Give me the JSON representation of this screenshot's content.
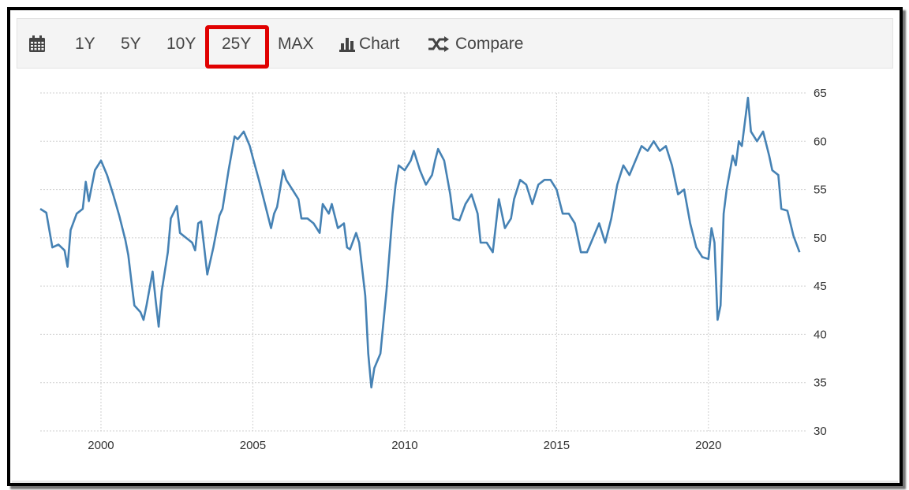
{
  "toolbar": {
    "calendar_icon": "calendar-icon",
    "ranges": [
      "1Y",
      "5Y",
      "10Y",
      "25Y",
      "MAX"
    ],
    "selected_range": "25Y",
    "chart_label": "Chart",
    "chart_icon": "bar-chart-icon",
    "compare_label": "Compare",
    "compare_icon": "shuffle-icon",
    "highlight_color": "#e00000"
  },
  "chart_data": {
    "type": "line",
    "title": "",
    "xlabel": "",
    "ylabel": "",
    "series_color": "#4682b4",
    "x_ticks": [
      "2000",
      "2005",
      "2010",
      "2015",
      "2020"
    ],
    "y_ticks": [
      "65",
      "60",
      "55",
      "50",
      "45",
      "40",
      "35",
      "30"
    ],
    "ylim": [
      30,
      65
    ],
    "xlim": [
      1998.0,
      2023.2
    ],
    "grid": true,
    "y_axis_side": "right",
    "series": [
      {
        "values": [
          [
            1998.0,
            53.0
          ],
          [
            1998.2,
            52.6
          ],
          [
            1998.4,
            49.0
          ],
          [
            1998.6,
            49.3
          ],
          [
            1998.8,
            48.7
          ],
          [
            1998.9,
            47.0
          ],
          [
            1999.0,
            50.8
          ],
          [
            1999.2,
            52.5
          ],
          [
            1999.4,
            53.0
          ],
          [
            1999.5,
            55.8
          ],
          [
            1999.6,
            53.8
          ],
          [
            1999.8,
            57.0
          ],
          [
            2000.0,
            58.0
          ],
          [
            2000.2,
            56.5
          ],
          [
            2000.4,
            54.5
          ],
          [
            2000.6,
            52.3
          ],
          [
            2000.8,
            49.8
          ],
          [
            2000.9,
            48.2
          ],
          [
            2001.0,
            45.5
          ],
          [
            2001.1,
            43.0
          ],
          [
            2001.3,
            42.3
          ],
          [
            2001.4,
            41.5
          ],
          [
            2001.5,
            43.0
          ],
          [
            2001.7,
            46.5
          ],
          [
            2001.8,
            43.5
          ],
          [
            2001.9,
            40.8
          ],
          [
            2002.0,
            44.5
          ],
          [
            2002.2,
            48.5
          ],
          [
            2002.3,
            52.0
          ],
          [
            2002.5,
            53.3
          ],
          [
            2002.6,
            50.5
          ],
          [
            2002.8,
            50.0
          ],
          [
            2003.0,
            49.5
          ],
          [
            2003.1,
            48.7
          ],
          [
            2003.2,
            51.5
          ],
          [
            2003.3,
            51.7
          ],
          [
            2003.5,
            46.2
          ],
          [
            2003.7,
            49.0
          ],
          [
            2003.9,
            52.3
          ],
          [
            2004.0,
            53.0
          ],
          [
            2004.2,
            57.0
          ],
          [
            2004.4,
            60.5
          ],
          [
            2004.5,
            60.2
          ],
          [
            2004.7,
            61.0
          ],
          [
            2004.9,
            59.5
          ],
          [
            2005.0,
            58.3
          ],
          [
            2005.2,
            56.0
          ],
          [
            2005.4,
            53.5
          ],
          [
            2005.6,
            51.0
          ],
          [
            2005.7,
            52.5
          ],
          [
            2005.8,
            53.2
          ],
          [
            2006.0,
            57.0
          ],
          [
            2006.1,
            56.0
          ],
          [
            2006.3,
            55.0
          ],
          [
            2006.5,
            54.0
          ],
          [
            2006.6,
            52.0
          ],
          [
            2006.8,
            52.0
          ],
          [
            2007.0,
            51.5
          ],
          [
            2007.2,
            50.5
          ],
          [
            2007.3,
            53.5
          ],
          [
            2007.5,
            52.5
          ],
          [
            2007.6,
            53.5
          ],
          [
            2007.8,
            51.0
          ],
          [
            2008.0,
            51.5
          ],
          [
            2008.1,
            49.0
          ],
          [
            2008.2,
            48.8
          ],
          [
            2008.4,
            50.5
          ],
          [
            2008.5,
            49.5
          ],
          [
            2008.7,
            44.0
          ],
          [
            2008.8,
            38.0
          ],
          [
            2008.9,
            34.5
          ],
          [
            2009.0,
            36.5
          ],
          [
            2009.2,
            38.0
          ],
          [
            2009.4,
            44.5
          ],
          [
            2009.6,
            52.5
          ],
          [
            2009.7,
            55.5
          ],
          [
            2009.8,
            57.5
          ],
          [
            2010.0,
            57.0
          ],
          [
            2010.2,
            58.0
          ],
          [
            2010.3,
            59.0
          ],
          [
            2010.5,
            57.0
          ],
          [
            2010.7,
            55.5
          ],
          [
            2010.9,
            56.5
          ],
          [
            2011.0,
            58.0
          ],
          [
            2011.1,
            59.2
          ],
          [
            2011.3,
            58.0
          ],
          [
            2011.5,
            54.5
          ],
          [
            2011.6,
            52.0
          ],
          [
            2011.8,
            51.8
          ],
          [
            2012.0,
            53.5
          ],
          [
            2012.2,
            54.5
          ],
          [
            2012.4,
            52.5
          ],
          [
            2012.5,
            49.5
          ],
          [
            2012.7,
            49.5
          ],
          [
            2012.9,
            48.5
          ],
          [
            2013.1,
            54.0
          ],
          [
            2013.3,
            51.0
          ],
          [
            2013.5,
            52.0
          ],
          [
            2013.6,
            54.0
          ],
          [
            2013.8,
            56.0
          ],
          [
            2014.0,
            55.5
          ],
          [
            2014.2,
            53.5
          ],
          [
            2014.4,
            55.5
          ],
          [
            2014.6,
            56.0
          ],
          [
            2014.8,
            56.0
          ],
          [
            2015.0,
            55.0
          ],
          [
            2015.2,
            52.5
          ],
          [
            2015.4,
            52.5
          ],
          [
            2015.6,
            51.5
          ],
          [
            2015.8,
            48.5
          ],
          [
            2016.0,
            48.5
          ],
          [
            2016.2,
            50.0
          ],
          [
            2016.4,
            51.5
          ],
          [
            2016.6,
            49.5
          ],
          [
            2016.8,
            52.0
          ],
          [
            2017.0,
            55.5
          ],
          [
            2017.2,
            57.5
          ],
          [
            2017.4,
            56.5
          ],
          [
            2017.6,
            58.0
          ],
          [
            2017.8,
            59.5
          ],
          [
            2018.0,
            59.0
          ],
          [
            2018.2,
            60.0
          ],
          [
            2018.4,
            59.0
          ],
          [
            2018.6,
            59.5
          ],
          [
            2018.8,
            57.5
          ],
          [
            2019.0,
            54.5
          ],
          [
            2019.2,
            55.0
          ],
          [
            2019.4,
            51.5
          ],
          [
            2019.6,
            49.0
          ],
          [
            2019.8,
            48.0
          ],
          [
            2020.0,
            47.8
          ],
          [
            2020.1,
            51.0
          ],
          [
            2020.2,
            49.5
          ],
          [
            2020.3,
            41.5
          ],
          [
            2020.4,
            43.0
          ],
          [
            2020.5,
            52.5
          ],
          [
            2020.6,
            55.0
          ],
          [
            2020.8,
            58.5
          ],
          [
            2020.9,
            57.5
          ],
          [
            2021.0,
            60.0
          ],
          [
            2021.1,
            59.5
          ],
          [
            2021.3,
            64.5
          ],
          [
            2021.4,
            61.0
          ],
          [
            2021.6,
            60.0
          ],
          [
            2021.8,
            61.0
          ],
          [
            2022.0,
            58.5
          ],
          [
            2022.1,
            57.0
          ],
          [
            2022.3,
            56.5
          ],
          [
            2022.4,
            53.0
          ],
          [
            2022.6,
            52.8
          ],
          [
            2022.8,
            50.2
          ],
          [
            2023.0,
            48.5
          ]
        ]
      }
    ]
  }
}
